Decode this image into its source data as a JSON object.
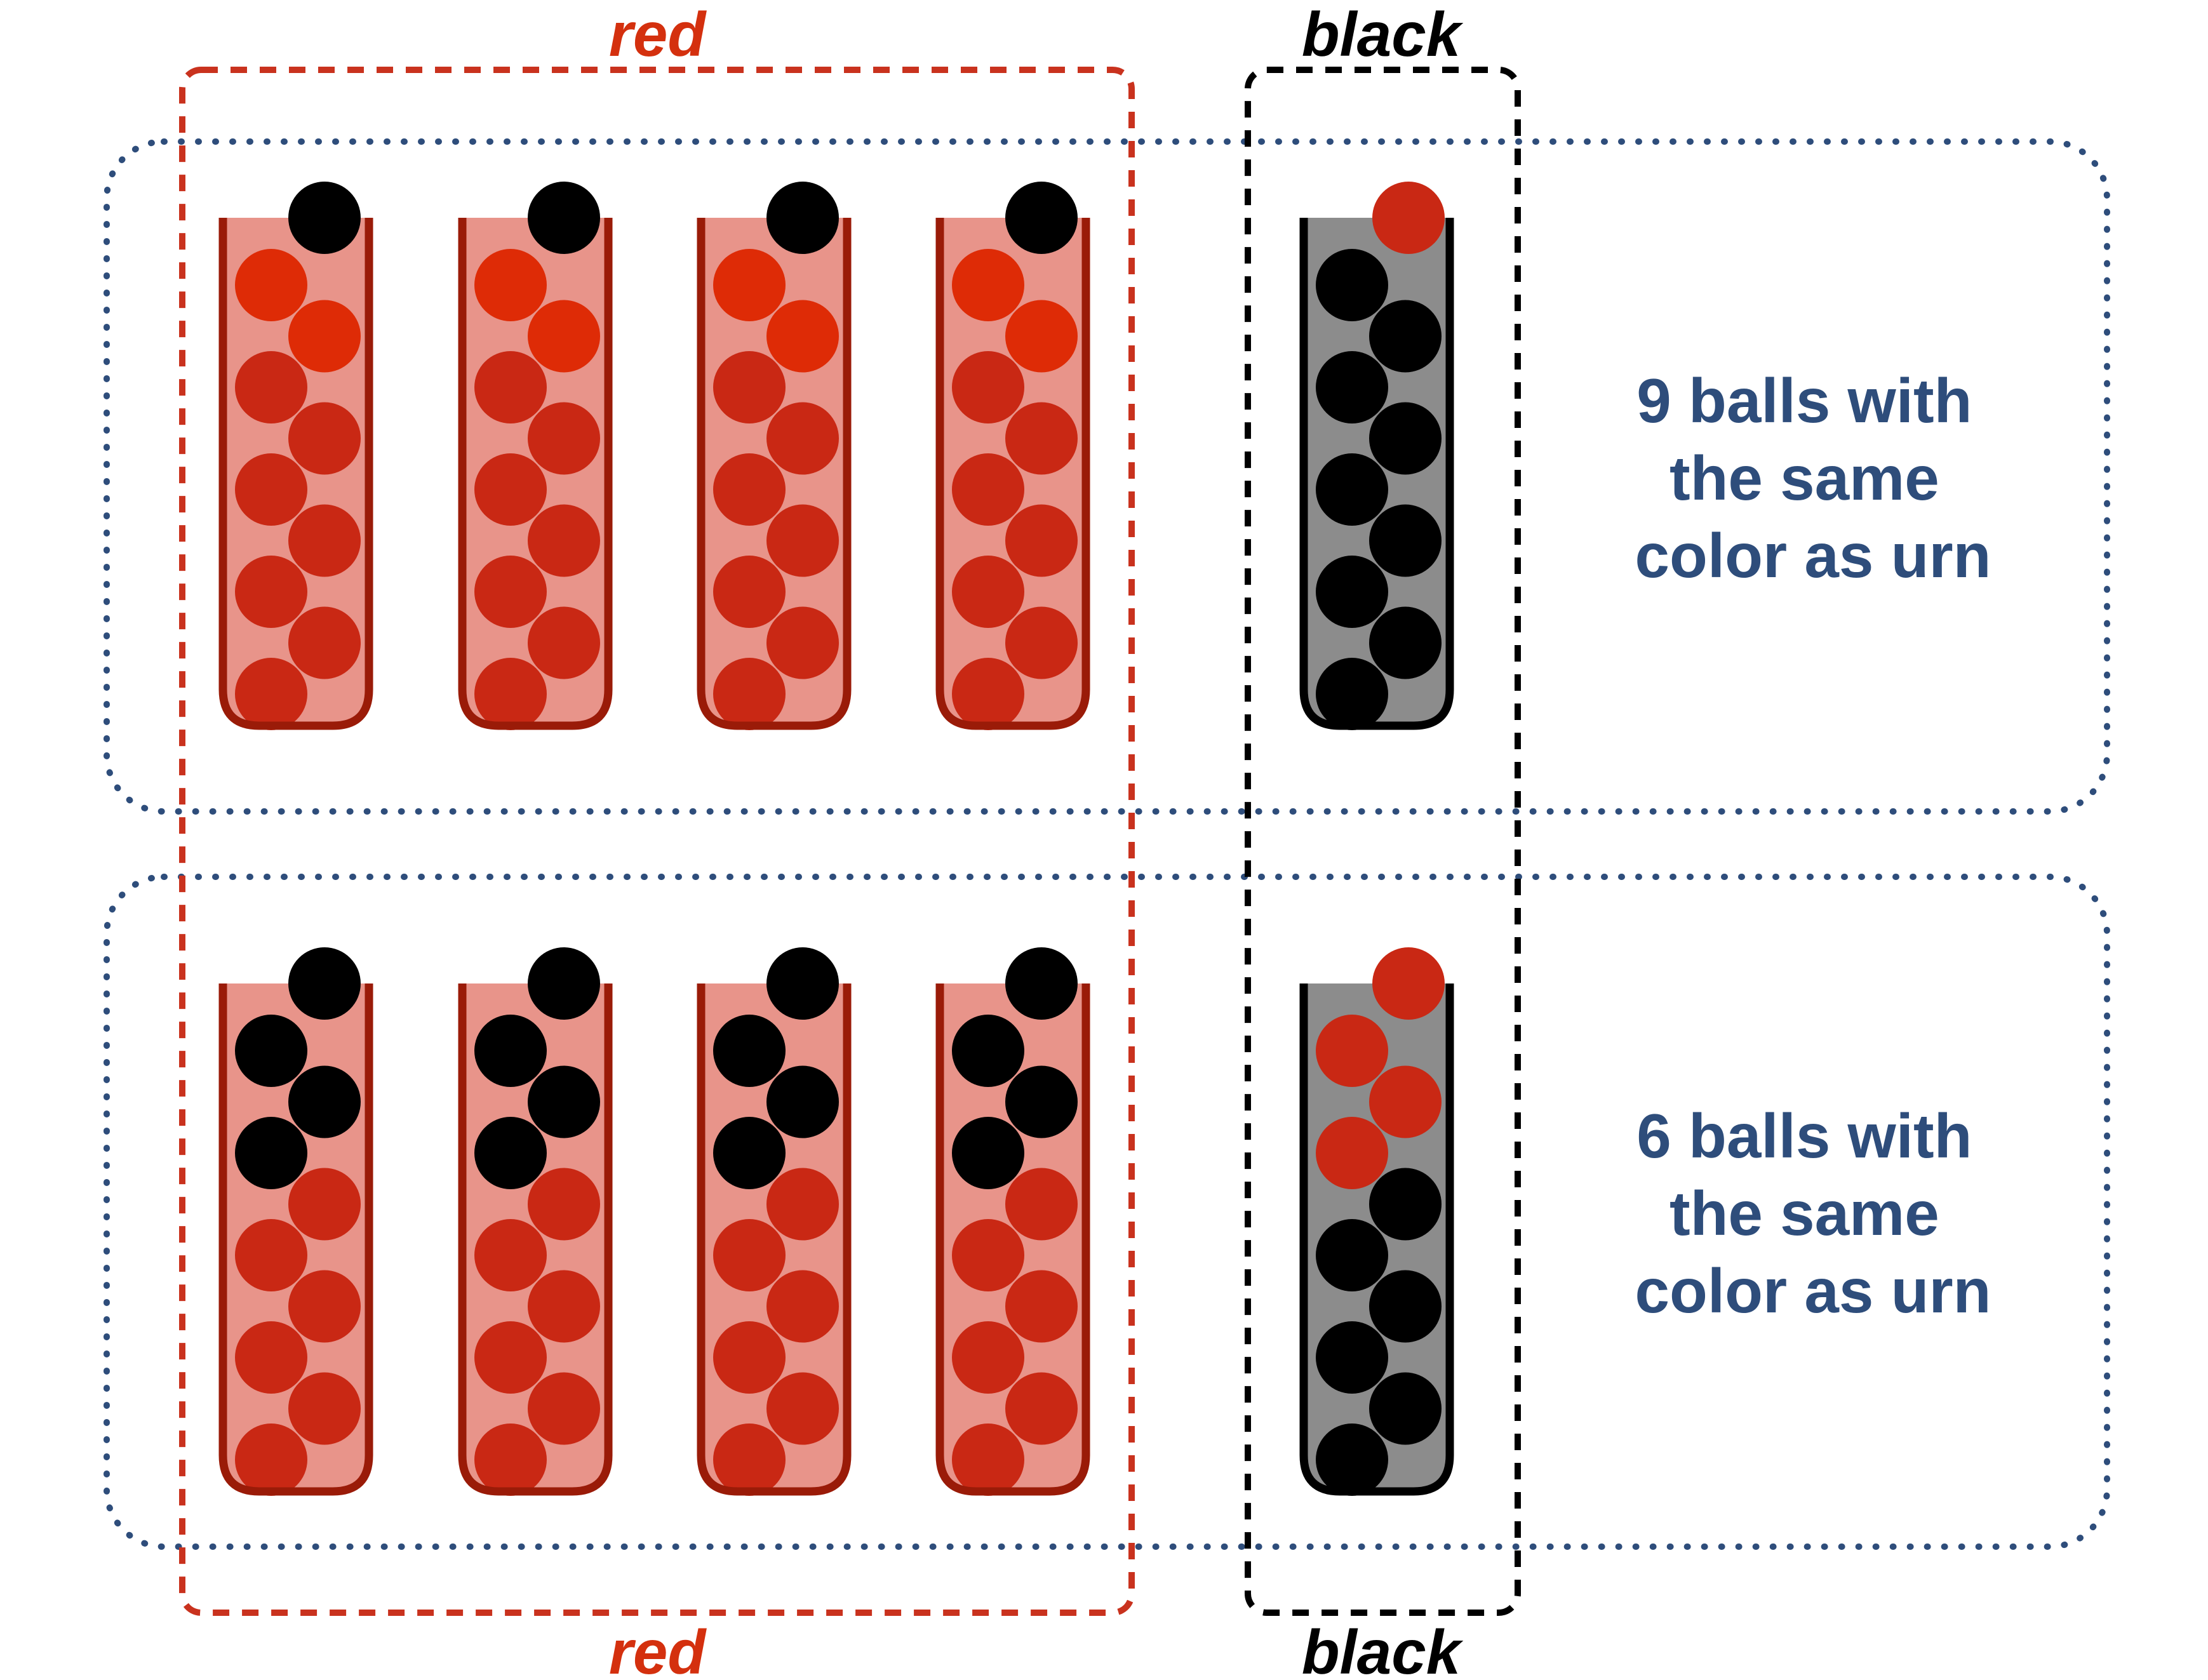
{
  "labels": {
    "red_group": "red",
    "black_group": "black"
  },
  "rows": [
    {
      "caption_lines": [
        "9 balls with",
        "the same",
        "color as urn"
      ],
      "urns": [
        {
          "color": "red",
          "top_ball": "black",
          "balls": [
            "redbright",
            "redbright",
            "red",
            "red",
            "red",
            "red",
            "red",
            "red",
            "red"
          ]
        },
        {
          "color": "red",
          "top_ball": "black",
          "balls": [
            "redbright",
            "redbright",
            "red",
            "red",
            "red",
            "red",
            "red",
            "red",
            "red"
          ]
        },
        {
          "color": "red",
          "top_ball": "black",
          "balls": [
            "redbright",
            "redbright",
            "red",
            "red",
            "red",
            "red",
            "red",
            "red",
            "red"
          ]
        },
        {
          "color": "red",
          "top_ball": "black",
          "balls": [
            "redbright",
            "redbright",
            "red",
            "red",
            "red",
            "red",
            "red",
            "red",
            "red"
          ]
        },
        {
          "color": "black",
          "top_ball": "red",
          "balls": [
            "black",
            "black",
            "black",
            "black",
            "black",
            "black",
            "black",
            "black",
            "black"
          ]
        }
      ]
    },
    {
      "caption_lines": [
        "6 balls with",
        "the same",
        "color as urn"
      ],
      "urns": [
        {
          "color": "red",
          "top_ball": "black",
          "balls": [
            "black",
            "black",
            "black",
            "red",
            "red",
            "red",
            "red",
            "red",
            "red"
          ]
        },
        {
          "color": "red",
          "top_ball": "black",
          "balls": [
            "black",
            "black",
            "black",
            "red",
            "red",
            "red",
            "red",
            "red",
            "red"
          ]
        },
        {
          "color": "red",
          "top_ball": "black",
          "balls": [
            "black",
            "black",
            "black",
            "red",
            "red",
            "red",
            "red",
            "red",
            "red"
          ]
        },
        {
          "color": "red",
          "top_ball": "black",
          "balls": [
            "black",
            "black",
            "black",
            "red",
            "red",
            "red",
            "red",
            "red",
            "red"
          ]
        },
        {
          "color": "black",
          "top_ball": "red",
          "balls": [
            "red",
            "red",
            "red",
            "black",
            "black",
            "black",
            "black",
            "black",
            "black"
          ]
        }
      ]
    }
  ],
  "colors": {
    "red_label": "#d4300e",
    "black_label": "#000000",
    "caption": "#2e4d7b",
    "red_group_border": "#c9321e",
    "black_group_border": "#000000",
    "row_border": "#2e4d7b",
    "red_urn_fill": "#e8948a",
    "red_urn_border": "#9a1b08",
    "black_urn_fill": "#8c8c8c",
    "black_urn_border": "#000000",
    "ball_red": "#c92814",
    "ball_redbright": "#de2b06",
    "ball_black": "#000000"
  }
}
